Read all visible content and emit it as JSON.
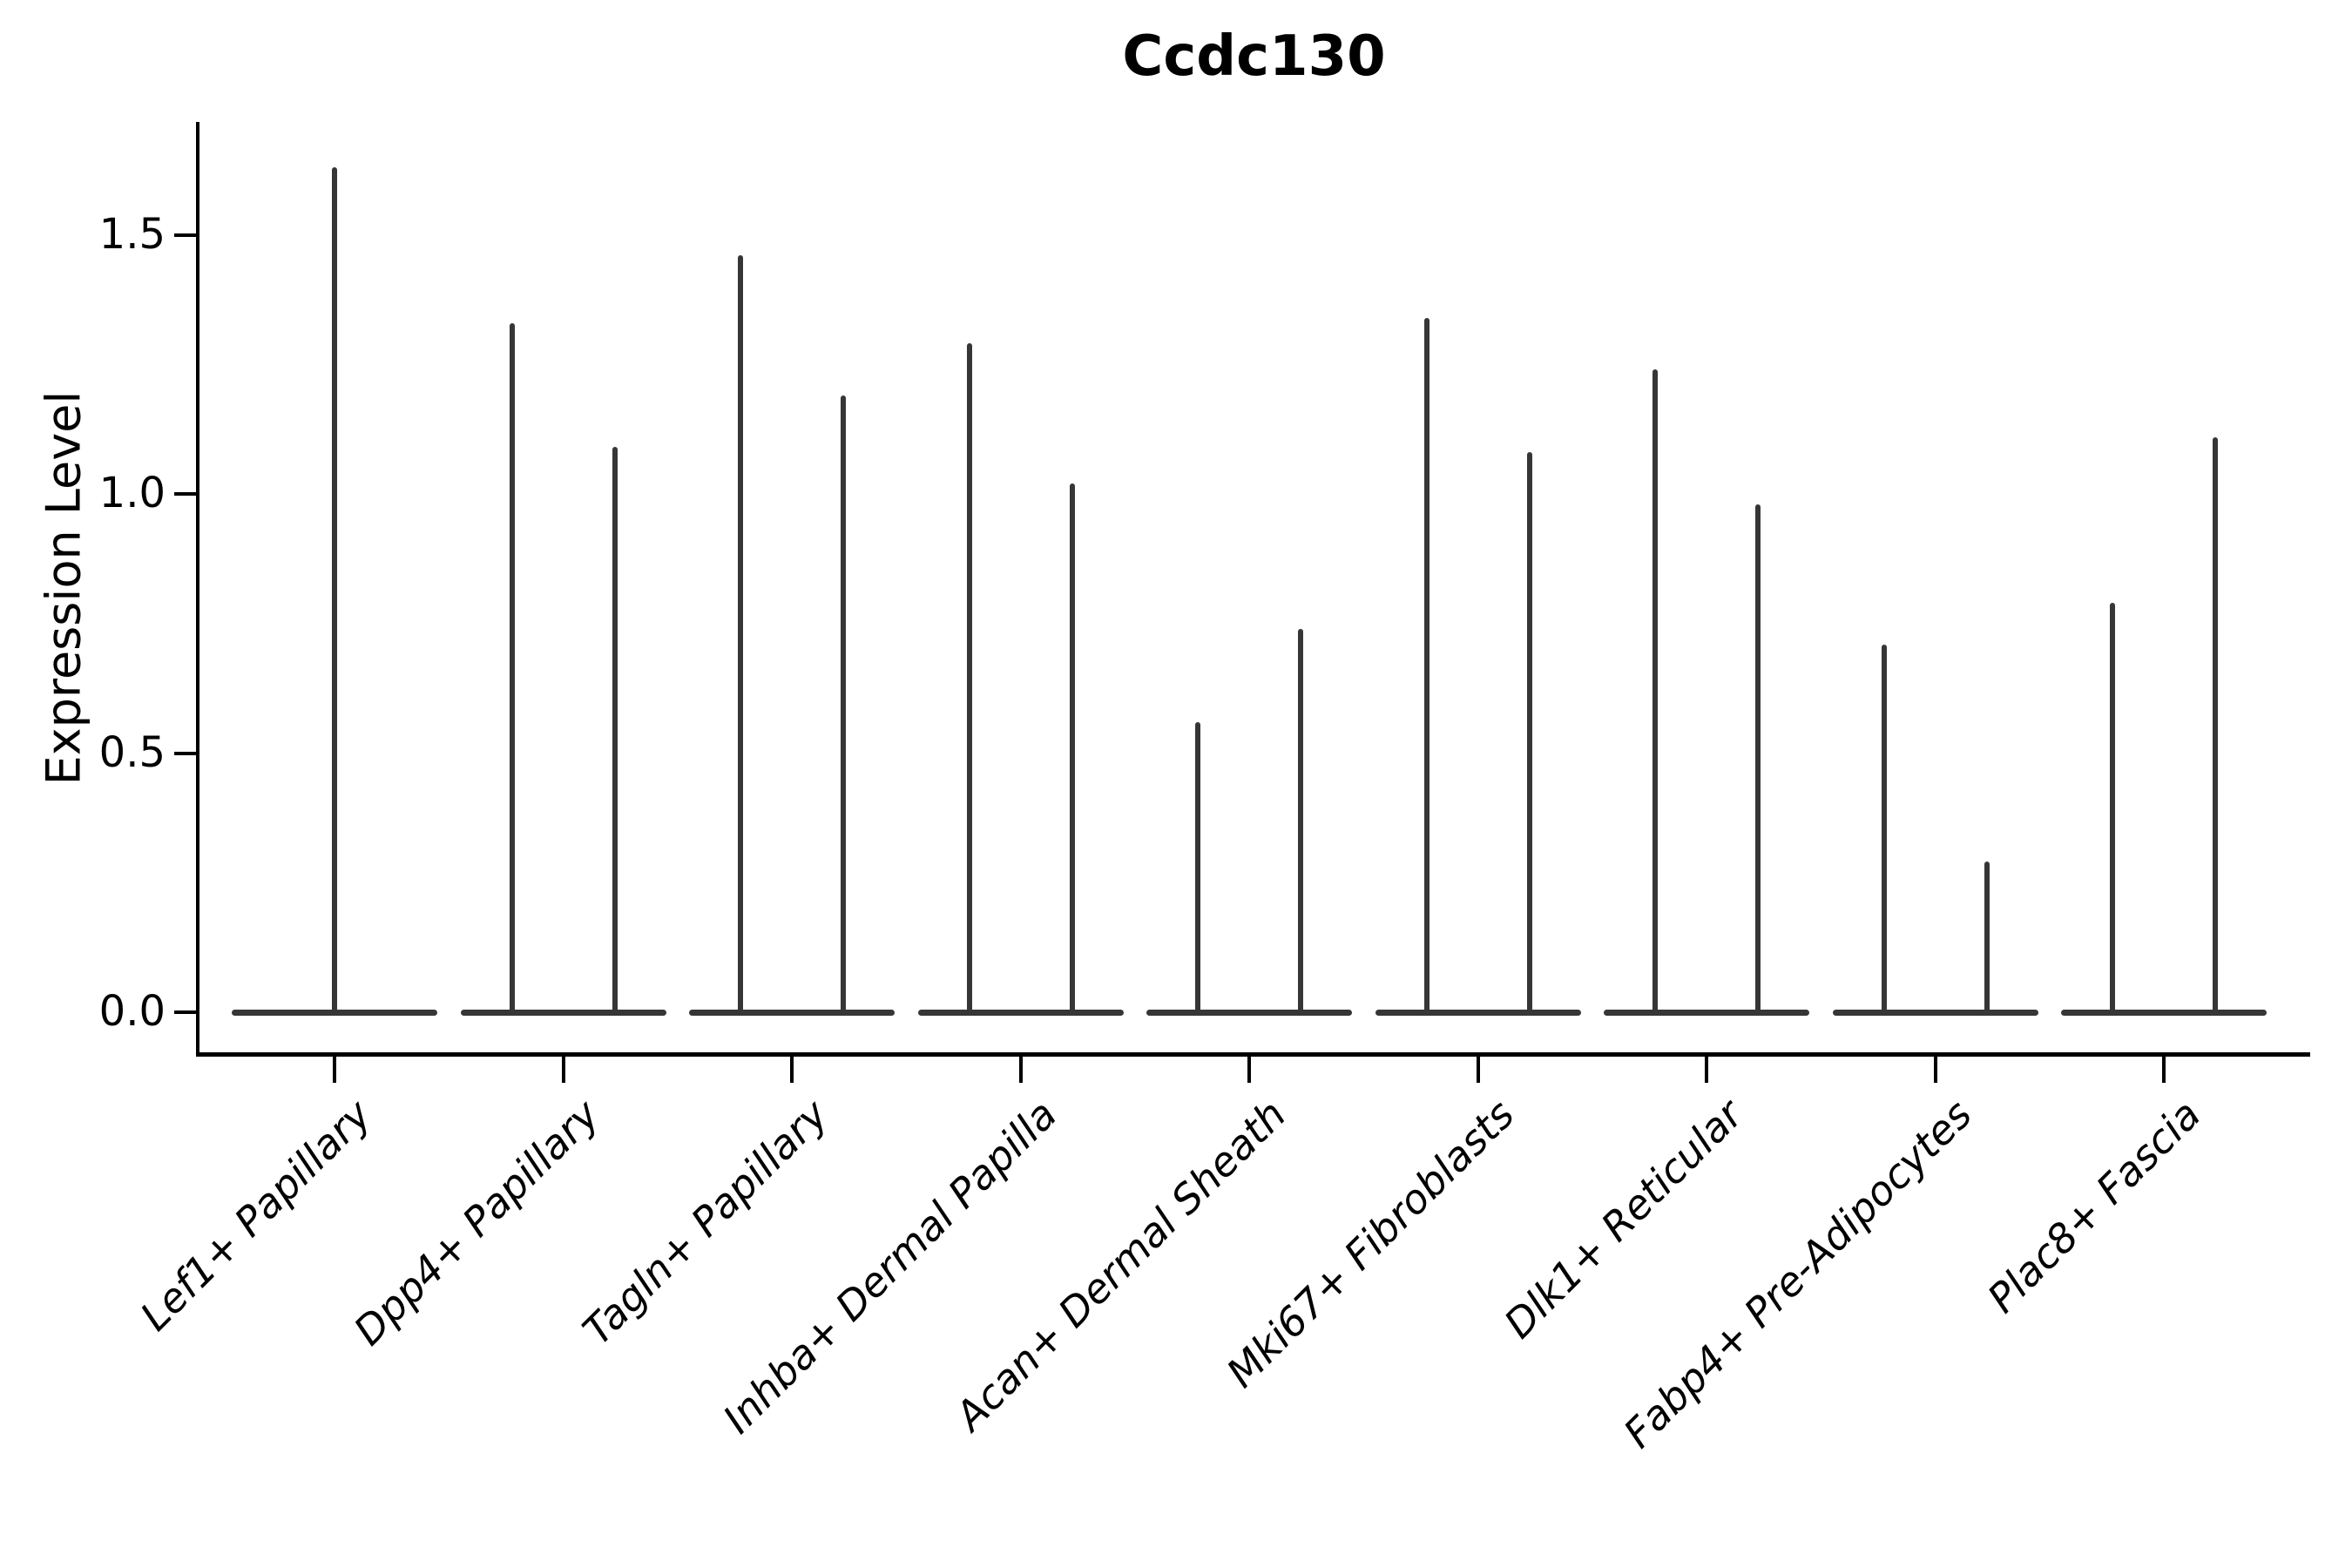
{
  "chart_data": {
    "type": "violin",
    "title": "Ccdc130",
    "ylabel": "Expression Level",
    "xlabel": "",
    "yticks": [
      "0.0",
      "0.5",
      "1.0",
      "1.5"
    ],
    "ylim": [
      -0.08,
      1.72
    ],
    "grid": false,
    "legend": "none",
    "violin_color": "#363636",
    "axis_color": "#000000",
    "categories": [
      "Lef1+ Papillary",
      "Dpp4+ Papillary",
      "Tagln+ Papillary",
      "Inhba+ Dermal Papilla",
      "Acan+ Dermal Sheath",
      "Mki67+ Fibroblasts",
      "Dlk1+ Reticular",
      "Fabp4+ Pre-Adipocytes",
      "Plac8+ Fascia"
    ],
    "violins": [
      {
        "category": "Lef1+ Papillary",
        "spike_max": [
          1.63
        ]
      },
      {
        "category": "Dpp4+ Papillary",
        "spike_max": [
          1.33,
          1.09
        ]
      },
      {
        "category": "Tagln+ Papillary",
        "spike_max": [
          1.46,
          1.19
        ]
      },
      {
        "category": "Inhba+ Dermal Papilla",
        "spike_max": [
          1.29,
          1.02
        ]
      },
      {
        "category": "Acan+ Dermal Sheath",
        "spike_max": [
          0.56,
          0.74
        ]
      },
      {
        "category": "Mki67+ Fibroblasts",
        "spike_max": [
          1.34,
          1.08
        ]
      },
      {
        "category": "Dlk1+ Reticular",
        "spike_max": [
          1.24,
          0.98
        ]
      },
      {
        "category": "Fabp4+ Pre-Adipocytes",
        "spike_max": [
          0.71,
          0.29
        ]
      },
      {
        "category": "Plac8+ Fascia",
        "spike_max": [
          0.79,
          1.11
        ]
      }
    ]
  }
}
